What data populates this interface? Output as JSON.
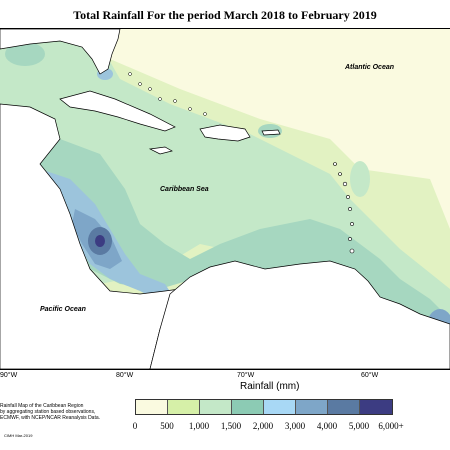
{
  "title": "Total Rainfall For the period March 2018 to February 2019",
  "labels": {
    "atlantic": "Atlantic Ocean",
    "caribbean": "Caribbean Sea",
    "pacific": "Pacific Ocean"
  },
  "longitudes": [
    "90°W",
    "80°W",
    "70°W",
    "60°W"
  ],
  "legend": {
    "title": "Rainfall (mm)",
    "ticks": [
      "0",
      "500",
      "1,000",
      "1,500",
      "2,000",
      "3,000",
      "4,000",
      "5,000",
      "6,000+"
    ],
    "colors": [
      "#fafae0",
      "#d6f0a8",
      "#c4e8c8",
      "#8ccbb4",
      "#a8d8f5",
      "#7ea6c8",
      "#5a7aa2",
      "#3c3c82"
    ]
  },
  "credits": {
    "line1": "Rainfall Map of the Caribbean Region",
    "line2": "by aggregating station based observations,",
    "line3": "ECMWF, with NCEP/NCAR Reanalysis Data.",
    "stamp": "CIMH Mar-2019"
  },
  "colors": {
    "land": "#ffffff",
    "coast": "#000000"
  }
}
